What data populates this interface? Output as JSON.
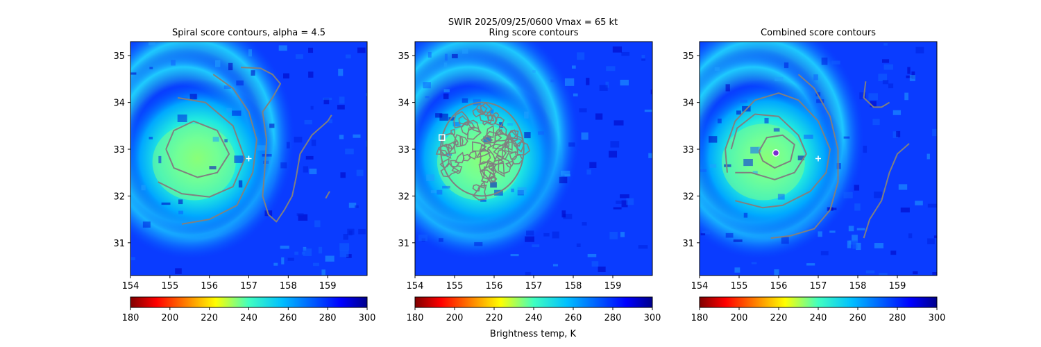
{
  "figure": {
    "suptitle_line1": "SWIR  2025/09/25/0600    Vmax = 65 kt",
    "colorbar_label": "Brightness temp, K"
  },
  "chart_data": [
    {
      "type": "heatmap",
      "title": "Spiral score contours, alpha =  4.5",
      "xlim": [
        154,
        160
      ],
      "ylim": [
        30.3,
        35.3
      ],
      "xticks": [
        154,
        155,
        156,
        157,
        158,
        159
      ],
      "yticks": [
        31,
        32,
        33,
        34,
        35
      ],
      "colormap": "jet_r",
      "clim": [
        180,
        300
      ],
      "colorbar_ticks": [
        180,
        200,
        220,
        240,
        260,
        280,
        300
      ],
      "background_center": [
        155.7,
        32.8
      ],
      "marker": {
        "type": "plus",
        "x": 157.0,
        "y": 32.8,
        "color": "#ffffff"
      },
      "contour_color": "#808080",
      "contours": [
        [
          [
            154.9,
            33.0
          ],
          [
            155.1,
            33.4
          ],
          [
            155.6,
            33.6
          ],
          [
            156.2,
            33.4
          ],
          [
            156.5,
            32.9
          ],
          [
            156.2,
            32.5
          ],
          [
            155.7,
            32.4
          ],
          [
            155.1,
            32.6
          ],
          [
            154.9,
            33.0
          ]
        ],
        [
          [
            154.7,
            32.3
          ],
          [
            155.3,
            32.05
          ],
          [
            156.0,
            31.98
          ],
          [
            156.6,
            32.2
          ],
          [
            156.9,
            32.8
          ],
          [
            156.6,
            33.5
          ],
          [
            155.9,
            34.0
          ],
          [
            155.2,
            34.1
          ]
        ],
        [
          [
            155.3,
            31.4
          ],
          [
            156.0,
            31.5
          ],
          [
            156.7,
            31.8
          ],
          [
            157.1,
            32.5
          ],
          [
            157.2,
            33.2
          ],
          [
            157.0,
            33.8
          ],
          [
            156.6,
            34.3
          ],
          [
            156.1,
            34.6
          ]
        ],
        [
          [
            156.8,
            34.75
          ],
          [
            157.3,
            34.73
          ],
          [
            157.6,
            34.6
          ],
          [
            157.8,
            34.4
          ],
          [
            157.6,
            34.1
          ],
          [
            157.35,
            33.8
          ],
          [
            157.45,
            33.2
          ],
          [
            157.4,
            32.5
          ],
          [
            157.35,
            32.0
          ],
          [
            157.5,
            31.6
          ],
          [
            157.7,
            31.45
          ],
          [
            157.9,
            31.7
          ],
          [
            158.1,
            32.0
          ],
          [
            158.2,
            32.4
          ],
          [
            158.3,
            32.9
          ],
          [
            158.6,
            33.3
          ],
          [
            159.0,
            33.6
          ],
          [
            159.1,
            33.73
          ]
        ],
        [
          [
            159.05,
            32.1
          ],
          [
            158.95,
            31.95
          ]
        ]
      ]
    },
    {
      "type": "heatmap",
      "title": "Ring score contours",
      "xlim": [
        154,
        160
      ],
      "ylim": [
        30.3,
        35.3
      ],
      "xticks": [
        154,
        155,
        156,
        157,
        158,
        159
      ],
      "yticks": [
        31,
        32,
        33,
        34,
        35
      ],
      "colormap": "jet_r",
      "clim": [
        180,
        300
      ],
      "colorbar_ticks": [
        180,
        200,
        220,
        240,
        260,
        280,
        300
      ],
      "background_center": [
        155.7,
        32.8
      ],
      "marker": {
        "type": "square",
        "x": 154.68,
        "y": 33.25,
        "color": "#ffffff"
      },
      "contour_color": "#808080",
      "ring_region": {
        "center": [
          155.7,
          33.0
        ],
        "rx": 1.05,
        "ry": 1.0
      }
    },
    {
      "type": "heatmap",
      "title": "Combined score contours",
      "xlim": [
        154,
        160
      ],
      "ylim": [
        30.3,
        35.3
      ],
      "xticks": [
        154,
        155,
        156,
        157,
        158,
        159
      ],
      "yticks": [
        31,
        32,
        33,
        34,
        35
      ],
      "colormap": "jet_r",
      "clim": [
        180,
        300
      ],
      "colorbar_ticks": [
        180,
        200,
        220,
        240,
        260,
        280,
        300
      ],
      "background_center": [
        155.7,
        32.8
      ],
      "marker": {
        "type": "plus",
        "x": 157.0,
        "y": 32.8,
        "color": "#ffffff"
      },
      "center_marker": {
        "x": 155.93,
        "y": 32.92,
        "color": "#7a2fd0"
      },
      "contour_color": "#808080",
      "contours": [
        [
          [
            155.5,
            32.95
          ],
          [
            155.7,
            33.25
          ],
          [
            156.1,
            33.3
          ],
          [
            156.4,
            33.1
          ],
          [
            156.3,
            32.75
          ],
          [
            155.9,
            32.6
          ],
          [
            155.6,
            32.75
          ],
          [
            155.5,
            32.95
          ]
        ],
        [
          [
            154.9,
            32.5
          ],
          [
            155.3,
            32.5
          ],
          [
            155.9,
            32.35
          ],
          [
            156.4,
            32.5
          ],
          [
            156.7,
            32.9
          ],
          [
            156.5,
            33.3
          ],
          [
            156.0,
            33.7
          ],
          [
            155.4,
            33.75
          ],
          [
            154.95,
            33.45
          ],
          [
            154.8,
            33.0
          ]
        ],
        [
          [
            154.7,
            32.5
          ],
          [
            154.65,
            33.0
          ],
          [
            154.9,
            33.6
          ],
          [
            155.4,
            34.05
          ],
          [
            156.0,
            34.2
          ],
          [
            156.5,
            34.05
          ],
          [
            157.0,
            33.6
          ],
          [
            157.3,
            33.0
          ],
          [
            157.2,
            32.5
          ],
          [
            156.8,
            32.1
          ],
          [
            156.1,
            31.8
          ],
          [
            155.6,
            31.75
          ],
          [
            154.9,
            31.9
          ]
        ],
        [
          [
            155.8,
            31.1
          ],
          [
            156.3,
            31.15
          ],
          [
            156.9,
            31.3
          ],
          [
            157.3,
            31.7
          ],
          [
            157.5,
            32.3
          ],
          [
            157.5,
            33.0
          ],
          [
            157.3,
            33.7
          ],
          [
            156.9,
            34.3
          ],
          [
            156.5,
            34.6
          ]
        ],
        [
          [
            158.2,
            34.45
          ],
          [
            158.15,
            34.1
          ],
          [
            158.4,
            33.9
          ],
          [
            158.6,
            33.9
          ],
          [
            158.8,
            34.0
          ]
        ],
        [
          [
            158.15,
            31.1
          ],
          [
            158.3,
            31.5
          ],
          [
            158.6,
            31.9
          ],
          [
            158.8,
            32.5
          ],
          [
            159.0,
            32.9
          ],
          [
            159.3,
            33.12
          ]
        ]
      ]
    }
  ]
}
